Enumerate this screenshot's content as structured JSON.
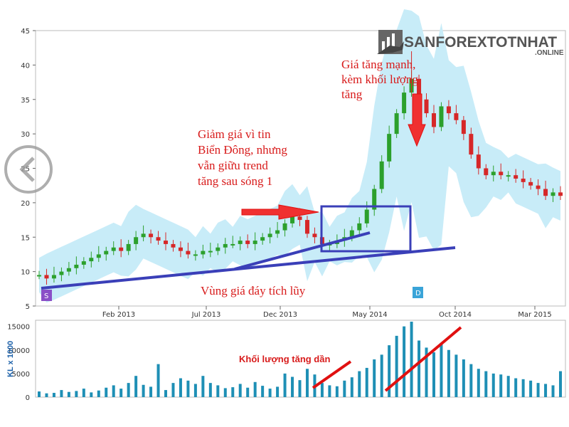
{
  "chart_data": {
    "type": "candlestick",
    "x_tick_labels": [
      "Feb 2013",
      "Jul 2013",
      "Dec 2013",
      "May 2014",
      "Oct 2014",
      "Mar 2015"
    ],
    "price_axis": {
      "ticks": [
        5,
        10,
        15,
        20,
        25,
        30,
        35,
        40,
        45
      ],
      "ylim": [
        5,
        45
      ]
    },
    "volume_axis": {
      "ticks": [
        "0",
        "5000",
        "10000",
        "15000"
      ],
      "ylabel": "KL x 1000",
      "ylim": [
        0,
        16000
      ]
    },
    "price_series_approx": [
      9.5,
      9,
      9.5,
      10,
      10.5,
      11,
      11.5,
      12,
      12.5,
      13,
      13.5,
      13,
      14,
      15,
      15.5,
      15,
      14.5,
      14,
      13.5,
      13,
      12.5,
      12.5,
      13,
      13,
      13.5,
      14,
      14,
      14.5,
      14,
      14.5,
      15,
      15.5,
      16,
      17,
      18,
      17.5,
      15.5,
      15,
      14,
      14,
      14.5,
      15,
      16,
      17,
      19,
      22,
      26,
      30,
      33,
      36,
      38,
      35,
      33,
      31,
      34,
      33,
      32,
      30,
      27,
      25,
      24,
      24.5,
      24,
      24,
      23.5,
      23,
      22.5,
      22,
      21,
      21.5,
      21
    ],
    "volume_series_approx": [
      1200,
      800,
      900,
      1500,
      1100,
      1300,
      1800,
      1000,
      1400,
      2000,
      2500,
      1800,
      3000,
      4500,
      2600,
      2200,
      7000,
      1500,
      3000,
      4000,
      3500,
      2800,
      4500,
      3000,
      2500,
      1900,
      2100,
      2800,
      2000,
      3200,
      2400,
      1800,
      2200,
      5000,
      4300,
      3600,
      6000,
      4800,
      3000,
      2500,
      2300,
      3500,
      4200,
      5500,
      6200,
      8000,
      9000,
      11000,
      13000,
      15000,
      16000,
      12000,
      10500,
      9500,
      11500,
      10000,
      9000,
      8000,
      7000,
      6000,
      5500,
      5000,
      4800,
      4500,
      4000,
      3800,
      3500,
      3000,
      2800,
      2500,
      5500
    ],
    "annotations": [
      "Giá tăng mạnh,",
      "kèm khối lượng",
      "tăng",
      "Giảm giá vì tin",
      "Biển Đông, nhưng",
      "vẫn giữu trend",
      "tăng sau sóng 1",
      "Vùng giá đáy tích lũy",
      "Khối lượng tăng dần"
    ],
    "markers": [
      "S",
      "D"
    ],
    "colors": {
      "bollinger_band": "#c8ecf8",
      "candle": "#2ca02c",
      "candle_down": "#d62728",
      "volume": "#1e8fb5",
      "trendline": "#3a3fb8",
      "annotation": "#d81b1b"
    }
  },
  "logo": {
    "main": "SANFOREXTOTNHAT",
    "sub": ".ONLINE"
  },
  "nav": {
    "back_label": "‹"
  }
}
